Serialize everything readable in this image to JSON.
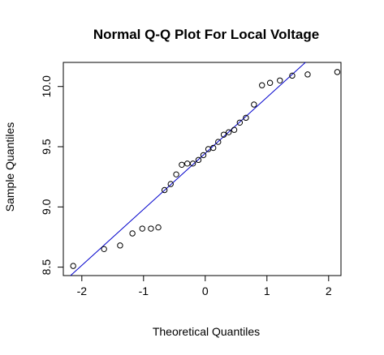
{
  "chart_data": {
    "type": "scatter",
    "title": "Normal Q-Q Plot For Local Voltage",
    "xlabel": "Theoretical Quantiles",
    "ylabel": "Sample Quantiles",
    "xlim": [
      -2.3,
      2.2
    ],
    "ylim": [
      8.43,
      10.2
    ],
    "xticks": [
      -2,
      -1,
      0,
      1,
      2
    ],
    "xtick_labels": [
      "-2",
      "-1",
      "0",
      "1",
      "2"
    ],
    "yticks": [
      8.5,
      9.0,
      9.5,
      10.0
    ],
    "ytick_labels": [
      "8.5",
      "9.0",
      "9.5",
      "10.0"
    ],
    "grid": false,
    "points": [
      {
        "x": -2.14,
        "y": 8.51
      },
      {
        "x": -1.64,
        "y": 8.65
      },
      {
        "x": -1.38,
        "y": 8.68
      },
      {
        "x": -1.18,
        "y": 8.78
      },
      {
        "x": -1.02,
        "y": 8.82
      },
      {
        "x": -0.88,
        "y": 8.82
      },
      {
        "x": -0.76,
        "y": 8.83
      },
      {
        "x": -0.66,
        "y": 9.14
      },
      {
        "x": -0.56,
        "y": 9.19
      },
      {
        "x": -0.47,
        "y": 9.27
      },
      {
        "x": -0.38,
        "y": 9.35
      },
      {
        "x": -0.29,
        "y": 9.36
      },
      {
        "x": -0.2,
        "y": 9.36
      },
      {
        "x": -0.11,
        "y": 9.39
      },
      {
        "x": -0.03,
        "y": 9.43
      },
      {
        "x": 0.05,
        "y": 9.48
      },
      {
        "x": 0.13,
        "y": 9.49
      },
      {
        "x": 0.21,
        "y": 9.54
      },
      {
        "x": 0.3,
        "y": 9.6
      },
      {
        "x": 0.38,
        "y": 9.62
      },
      {
        "x": 0.47,
        "y": 9.64
      },
      {
        "x": 0.56,
        "y": 9.7
      },
      {
        "x": 0.66,
        "y": 9.74
      },
      {
        "x": 0.79,
        "y": 9.85
      },
      {
        "x": 0.92,
        "y": 10.01
      },
      {
        "x": 1.05,
        "y": 10.03
      },
      {
        "x": 1.21,
        "y": 10.05
      },
      {
        "x": 1.41,
        "y": 10.09
      },
      {
        "x": 1.66,
        "y": 10.1
      },
      {
        "x": 2.14,
        "y": 10.12
      }
    ],
    "reference_line": {
      "intercept": 9.445,
      "slope": 0.465,
      "color": "#0000cc"
    },
    "point_color": "#000000"
  }
}
